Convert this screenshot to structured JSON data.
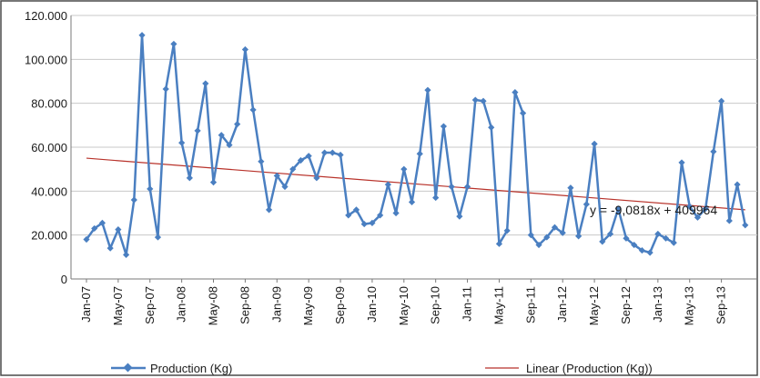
{
  "chart_data": {
    "type": "line",
    "title": "",
    "xlabel": "",
    "ylabel": "",
    "ylim": [
      0,
      120000
    ],
    "y_ticks": [
      "0",
      "20.000",
      "40.000",
      "60.000",
      "80.000",
      "100.000",
      "120.000"
    ],
    "x_tick_labels": [
      "Jan-07",
      "May-07",
      "Sep-07",
      "Jan-08",
      "May-08",
      "Sep-08",
      "Jan-09",
      "May-09",
      "Sep-09",
      "Jan-10",
      "May-10",
      "Sep-10",
      "Jan-11",
      "May-11",
      "Sep-11",
      "Jan-12",
      "May-12",
      "Sep-12",
      "Jan-13",
      "May-13",
      "Sep-13"
    ],
    "x_tick_step_months": 4,
    "x_start": "Jan-07",
    "grid": "horizontal",
    "legend_position": "bottom",
    "series": [
      {
        "name": "Production (Kg)",
        "color": "#4a7fc1",
        "marker": "diamond",
        "values": [
          18000,
          23000,
          25500,
          14000,
          22500,
          11000,
          36000,
          111000,
          41000,
          19000,
          86500,
          107000,
          62000,
          46000,
          67500,
          89000,
          44000,
          65500,
          61000,
          70500,
          104500,
          77000,
          53500,
          31500,
          47000,
          42000,
          50000,
          54000,
          56000,
          46000,
          57500,
          57500,
          56500,
          29000,
          31500,
          25000,
          25500,
          29000,
          43000,
          30000,
          50000,
          35000,
          57000,
          86000,
          37000,
          69500,
          42000,
          28500,
          42000,
          81500,
          81000,
          69000,
          16000,
          22000,
          85000,
          75500,
          20000,
          15500,
          19000,
          23500,
          21000,
          41500,
          19500,
          34000,
          61500,
          17000,
          20500,
          32000,
          18500,
          15500,
          13000,
          12000,
          20500,
          18500,
          16500,
          53000,
          33000,
          28000,
          32000,
          58000,
          81000,
          26500,
          43000,
          24500
        ]
      },
      {
        "name": "Linear (Production (Kg))",
        "color": "#b8322a",
        "kind": "trendline",
        "start_value": 55000,
        "end_value": 31500
      }
    ],
    "annotations": [
      {
        "text": "y = -9,0818x + 409964"
      }
    ]
  }
}
